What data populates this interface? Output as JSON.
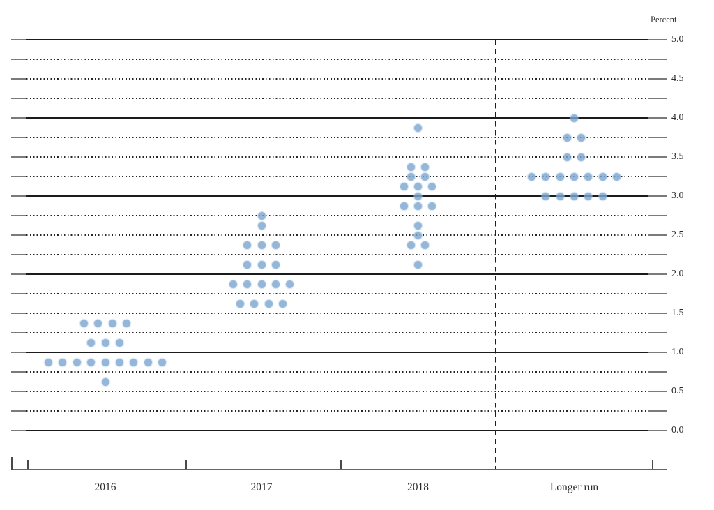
{
  "header": {
    "percent_label": "Percent"
  },
  "chart_data": {
    "type": "scatter",
    "subtype": "fomc_dot_plot",
    "title": "",
    "xlabel": "",
    "ylabel": "Percent",
    "ylim": [
      0.0,
      5.0
    ],
    "gridline_step": 0.25,
    "solid_line_step": 1.0,
    "tick_label_step": 0.5,
    "grid": "on",
    "legend": "none",
    "y_tick_labels": [
      "5.0",
      "4.5",
      "4.0",
      "3.5",
      "3.0",
      "2.5",
      "2.0",
      "1.5",
      "1.0",
      "0.5",
      "0.0"
    ],
    "categories": [
      "2016",
      "2017",
      "2018",
      "Longer run"
    ],
    "separator_before_category": "Longer run",
    "dot_color": "#90b6da",
    "series": [
      {
        "category": "2016",
        "distribution": [
          {
            "rate": 1.375,
            "count": 4
          },
          {
            "rate": 1.125,
            "count": 3
          },
          {
            "rate": 0.875,
            "count": 9
          },
          {
            "rate": 0.625,
            "count": 1
          }
        ]
      },
      {
        "category": "2017",
        "distribution": [
          {
            "rate": 2.75,
            "count": 1
          },
          {
            "rate": 2.625,
            "count": 1
          },
          {
            "rate": 2.375,
            "count": 3
          },
          {
            "rate": 2.125,
            "count": 3
          },
          {
            "rate": 1.875,
            "count": 5
          },
          {
            "rate": 1.625,
            "count": 4
          }
        ]
      },
      {
        "category": "2018",
        "distribution": [
          {
            "rate": 3.875,
            "count": 1
          },
          {
            "rate": 3.375,
            "count": 2
          },
          {
            "rate": 3.25,
            "count": 2
          },
          {
            "rate": 3.125,
            "count": 3
          },
          {
            "rate": 3.0,
            "count": 1
          },
          {
            "rate": 2.875,
            "count": 3
          },
          {
            "rate": 2.625,
            "count": 1
          },
          {
            "rate": 2.5,
            "count": 1
          },
          {
            "rate": 2.375,
            "count": 2
          },
          {
            "rate": 2.125,
            "count": 1
          }
        ]
      },
      {
        "category": "Longer run",
        "distribution": [
          {
            "rate": 4.0,
            "count": 1
          },
          {
            "rate": 3.75,
            "count": 2
          },
          {
            "rate": 3.5,
            "count": 2
          },
          {
            "rate": 3.25,
            "count": 7
          },
          {
            "rate": 3.0,
            "count": 5
          }
        ]
      }
    ]
  }
}
